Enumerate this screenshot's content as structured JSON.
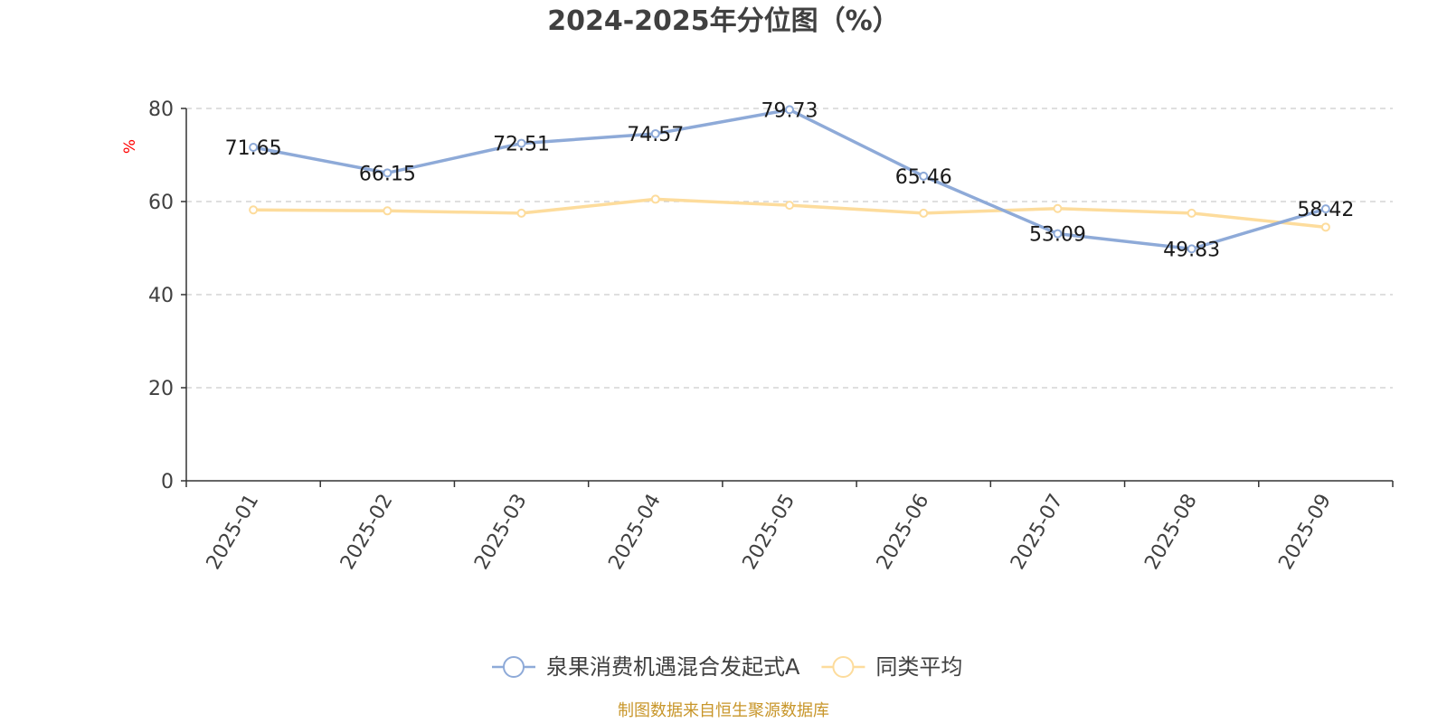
{
  "chart_data": {
    "type": "line",
    "title": "2024-2025年分位图（%）",
    "ylabel": "%",
    "xlabel": "",
    "ylim": [
      0,
      80
    ],
    "yticks": [
      0,
      20,
      40,
      60,
      80
    ],
    "grid": true,
    "legend_position": "bottom-center",
    "categories": [
      "2025-01",
      "2025-02",
      "2025-03",
      "2025-04",
      "2025-05",
      "2025-06",
      "2025-07",
      "2025-08",
      "2025-09"
    ],
    "series": [
      {
        "name": "泉果消费机遇混合发起式A",
        "color": "#8eaad8",
        "values": [
          71.65,
          66.15,
          72.51,
          74.57,
          79.73,
          65.46,
          53.09,
          49.83,
          58.42
        ],
        "show_labels": true
      },
      {
        "name": "同类平均",
        "color": "#fddc9c",
        "values": [
          58.2,
          58.0,
          57.5,
          60.5,
          59.2,
          57.5,
          58.5,
          57.5,
          54.5
        ],
        "show_labels": false
      }
    ]
  },
  "source_note": "制图数据来自恒生聚源数据库"
}
